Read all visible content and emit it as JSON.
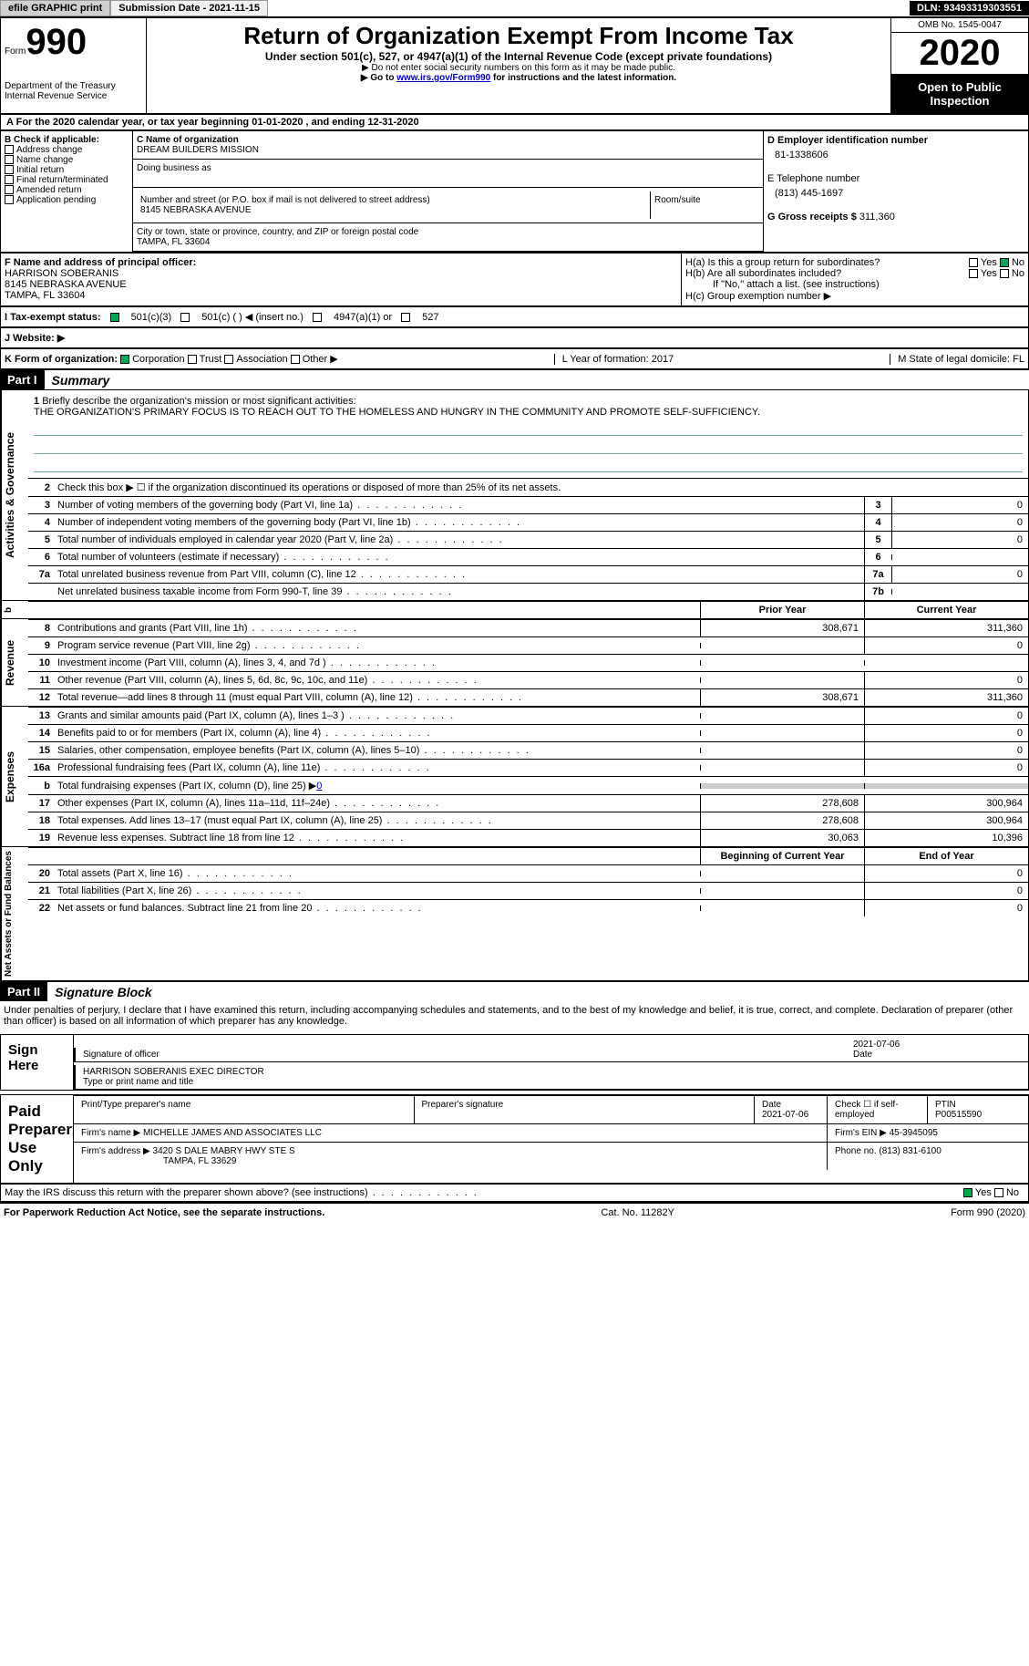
{
  "topbar": {
    "efile": "efile GRAPHIC print",
    "submission": "Submission Date - 2021-11-15",
    "dln": "DLN: 93493319303551"
  },
  "header": {
    "form_label": "Form",
    "form_num": "990",
    "dept": "Department of the Treasury",
    "irs": "Internal Revenue Service",
    "title": "Return of Organization Exempt From Income Tax",
    "subtitle": "Under section 501(c), 527, or 4947(a)(1) of the Internal Revenue Code (except private foundations)",
    "note1": "▶ Do not enter social security numbers on this form as it may be made public.",
    "note2_pre": "▶ Go to ",
    "note2_link": "www.irs.gov/Form990",
    "note2_post": " for instructions and the latest information.",
    "omb": "OMB No. 1545-0047",
    "year": "2020",
    "open": "Open to Public Inspection"
  },
  "section_a": "For the 2020 calendar year, or tax year beginning 01-01-2020   , and ending 12-31-2020",
  "section_b": {
    "label": "B Check if applicable:",
    "opts": [
      "Address change",
      "Name change",
      "Initial return",
      "Final return/terminated",
      "Amended return",
      "Application pending"
    ]
  },
  "section_c": {
    "name_label": "C Name of organization",
    "name": "DREAM BUILDERS MISSION",
    "dba_label": "Doing business as",
    "addr_label": "Number and street (or P.O. box if mail is not delivered to street address)",
    "room_label": "Room/suite",
    "addr": "8145 NEBRASKA AVENUE",
    "city_label": "City or town, state or province, country, and ZIP or foreign postal code",
    "city": "TAMPA, FL  33604"
  },
  "section_d": {
    "label": "D Employer identification number",
    "value": "81-1338606"
  },
  "section_e": {
    "label": "E Telephone number",
    "value": "(813) 445-1697"
  },
  "section_g": {
    "label": "G Gross receipts $",
    "value": "311,360"
  },
  "section_f": {
    "label": "F  Name and address of principal officer:",
    "name": "HARRISON SOBERANIS",
    "addr1": "8145 NEBRASKA AVENUE",
    "addr2": "TAMPA, FL  33604"
  },
  "section_h": {
    "ha": "H(a)  Is this a group return for subordinates?",
    "hb": "H(b)  Are all subordinates included?",
    "hb_note": "If \"No,\" attach a list. (see instructions)",
    "hc": "H(c)  Group exemption number ▶",
    "yes": "Yes",
    "no": "No"
  },
  "section_i": {
    "label": "I    Tax-exempt status:",
    "opt1": "501(c)(3)",
    "opt2": "501(c) (  ) ◀ (insert no.)",
    "opt3": "4947(a)(1) or",
    "opt4": "527"
  },
  "section_j": {
    "label": "J    Website: ▶"
  },
  "section_k": {
    "label": "K Form of organization:",
    "opts": [
      "Corporation",
      "Trust",
      "Association",
      "Other ▶"
    ]
  },
  "section_lm": {
    "l": "L Year of formation: 2017",
    "m": "M State of legal domicile: FL"
  },
  "part1": {
    "label": "Part I",
    "title": "Summary"
  },
  "side_labels": {
    "gov": "Activities & Governance",
    "rev": "Revenue",
    "exp": "Expenses",
    "net": "Net Assets or Fund Balances",
    "b": "b"
  },
  "mission": {
    "num": "1",
    "label": "Briefly describe the organization's mission or most significant activities:",
    "text": "THE ORGANIZATION'S PRIMARY FOCUS IS TO REACH OUT TO THE HOMELESS AND HUNGRY IN THE COMMUNITY AND PROMOTE SELF-SUFFICIENCY."
  },
  "line2": {
    "num": "2",
    "text": "Check this box ▶ ☐ if the organization discontinued its operations or disposed of more than 25% of its net assets."
  },
  "gov_rows": [
    {
      "num": "3",
      "label": "Number of voting members of the governing body (Part VI, line 1a)",
      "box": "3",
      "val": "0"
    },
    {
      "num": "4",
      "label": "Number of independent voting members of the governing body (Part VI, line 1b)",
      "box": "4",
      "val": "0"
    },
    {
      "num": "5",
      "label": "Total number of individuals employed in calendar year 2020 (Part V, line 2a)",
      "box": "5",
      "val": "0"
    },
    {
      "num": "6",
      "label": "Total number of volunteers (estimate if necessary)",
      "box": "6",
      "val": ""
    },
    {
      "num": "7a",
      "label": "Total unrelated business revenue from Part VIII, column (C), line 12",
      "box": "7a",
      "val": "0"
    },
    {
      "num": "",
      "label": "Net unrelated business taxable income from Form 990-T, line 39",
      "box": "7b",
      "val": ""
    }
  ],
  "col_headers": {
    "prior": "Prior Year",
    "curr": "Current Year"
  },
  "rev_rows": [
    {
      "num": "8",
      "label": "Contributions and grants (Part VIII, line 1h)",
      "prior": "308,671",
      "curr": "311,360"
    },
    {
      "num": "9",
      "label": "Program service revenue (Part VIII, line 2g)",
      "prior": "",
      "curr": "0"
    },
    {
      "num": "10",
      "label": "Investment income (Part VIII, column (A), lines 3, 4, and 7d )",
      "prior": "",
      "curr": ""
    },
    {
      "num": "11",
      "label": "Other revenue (Part VIII, column (A), lines 5, 6d, 8c, 9c, 10c, and 11e)",
      "prior": "",
      "curr": "0"
    },
    {
      "num": "12",
      "label": "Total revenue—add lines 8 through 11 (must equal Part VIII, column (A), line 12)",
      "prior": "308,671",
      "curr": "311,360"
    }
  ],
  "exp_rows": [
    {
      "num": "13",
      "label": "Grants and similar amounts paid (Part IX, column (A), lines 1–3 )",
      "prior": "",
      "curr": "0"
    },
    {
      "num": "14",
      "label": "Benefits paid to or for members (Part IX, column (A), line 4)",
      "prior": "",
      "curr": "0"
    },
    {
      "num": "15",
      "label": "Salaries, other compensation, employee benefits (Part IX, column (A), lines 5–10)",
      "prior": "",
      "curr": "0"
    },
    {
      "num": "16a",
      "label": "Professional fundraising fees (Part IX, column (A), line 11e)",
      "prior": "",
      "curr": "0"
    }
  ],
  "line16b": {
    "num": "b",
    "label": "Total fundraising expenses (Part IX, column (D), line 25) ▶",
    "val": "0"
  },
  "exp_rows2": [
    {
      "num": "17",
      "label": "Other expenses (Part IX, column (A), lines 11a–11d, 11f–24e)",
      "prior": "278,608",
      "curr": "300,964"
    },
    {
      "num": "18",
      "label": "Total expenses. Add lines 13–17 (must equal Part IX, column (A), line 25)",
      "prior": "278,608",
      "curr": "300,964"
    },
    {
      "num": "19",
      "label": "Revenue less expenses. Subtract line 18 from line 12",
      "prior": "30,063",
      "curr": "10,396"
    }
  ],
  "net_headers": {
    "begin": "Beginning of Current Year",
    "end": "End of Year"
  },
  "net_rows": [
    {
      "num": "20",
      "label": "Total assets (Part X, line 16)",
      "prior": "",
      "curr": "0"
    },
    {
      "num": "21",
      "label": "Total liabilities (Part X, line 26)",
      "prior": "",
      "curr": "0"
    },
    {
      "num": "22",
      "label": "Net assets or fund balances. Subtract line 21 from line 20",
      "prior": "",
      "curr": "0"
    }
  ],
  "part2": {
    "label": "Part II",
    "title": "Signature Block"
  },
  "penalty": "Under penalties of perjury, I declare that I have examined this return, including accompanying schedules and statements, and to the best of my knowledge and belief, it is true, correct, and complete. Declaration of preparer (other than officer) is based on all information of which preparer has any knowledge.",
  "sign": {
    "label": "Sign Here",
    "sig_label": "Signature of officer",
    "date": "2021-07-06",
    "date_label": "Date",
    "name": "HARRISON SOBERANIS  EXEC DIRECTOR",
    "name_label": "Type or print name and title"
  },
  "preparer": {
    "label": "Paid Preparer Use Only",
    "h1": "Print/Type preparer's name",
    "h2": "Preparer's signature",
    "h3": "Date",
    "h3v": "2021-07-06",
    "h4": "Check ☐ if self-employed",
    "h5": "PTIN",
    "h5v": "P00515590",
    "firm_label": "Firm's name   ▶",
    "firm": "MICHELLE JAMES AND ASSOCIATES LLC",
    "ein_label": "Firm's EIN ▶",
    "ein": "45-3945095",
    "addr_label": "Firm's address ▶",
    "addr1": "3420 S DALE MABRY HWY STE S",
    "addr2": "TAMPA, FL  33629",
    "phone_label": "Phone no.",
    "phone": "(813) 831-6100"
  },
  "discuss": {
    "label": "May the IRS discuss this return with the preparer shown above? (see instructions)",
    "yes": "Yes",
    "no": "No"
  },
  "footer": {
    "left": "For Paperwork Reduction Act Notice, see the separate instructions.",
    "mid": "Cat. No. 11282Y",
    "right": "Form 990 (2020)"
  }
}
